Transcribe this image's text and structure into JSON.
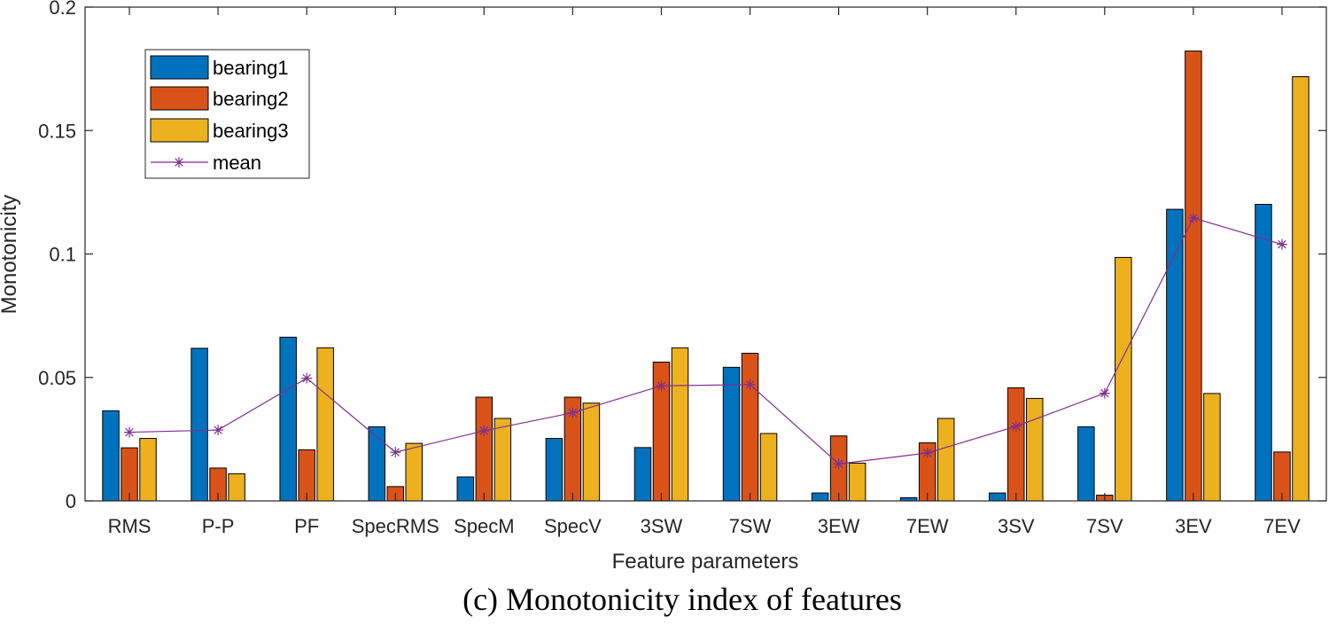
{
  "chart_data": {
    "type": "bar",
    "title": "",
    "xlabel": "Feature parameters",
    "ylabel": "Monotonicity",
    "ylim": [
      0,
      0.2
    ],
    "yticks": [
      "0",
      "0.05",
      "0.1",
      "0.15",
      "0.2"
    ],
    "ytick_values": [
      0,
      0.05,
      0.1,
      0.15,
      0.2
    ],
    "categories": [
      "RMS",
      "P-P",
      "PF",
      "SpecRMS",
      "SpecM",
      "SpecV",
      "3SW",
      "7SW",
      "3EW",
      "7EW",
      "3SV",
      "7SV",
      "3EV",
      "7EV"
    ],
    "series": [
      {
        "name": "bearing1",
        "color": "#0072BD",
        "values": [
          0.0365,
          0.0618,
          0.0663,
          0.03,
          0.0097,
          0.0253,
          0.0216,
          0.0541,
          0.0032,
          0.0013,
          0.0032,
          0.03,
          0.1181,
          0.1201
        ]
      },
      {
        "name": "bearing2",
        "color": "#D95319",
        "values": [
          0.0215,
          0.0133,
          0.0207,
          0.0058,
          0.042,
          0.042,
          0.0562,
          0.0598,
          0.0263,
          0.0235,
          0.0458,
          0.0023,
          0.1822,
          0.0198
        ]
      },
      {
        "name": "bearing3",
        "color": "#EDB120",
        "values": [
          0.0253,
          0.011,
          0.062,
          0.0233,
          0.0334,
          0.0396,
          0.062,
          0.0273,
          0.0153,
          0.0334,
          0.0415,
          0.0986,
          0.0435,
          0.1718
        ]
      }
    ],
    "line": {
      "name": "mean",
      "color": "#7E2F8E",
      "values": [
        0.0278,
        0.0287,
        0.0497,
        0.0197,
        0.0284,
        0.0357,
        0.0466,
        0.0471,
        0.015,
        0.0194,
        0.0302,
        0.0436,
        0.1146,
        0.1039
      ]
    },
    "legend_position": "top-left",
    "grid": false
  },
  "caption": "(c) Monotonicity index of features"
}
